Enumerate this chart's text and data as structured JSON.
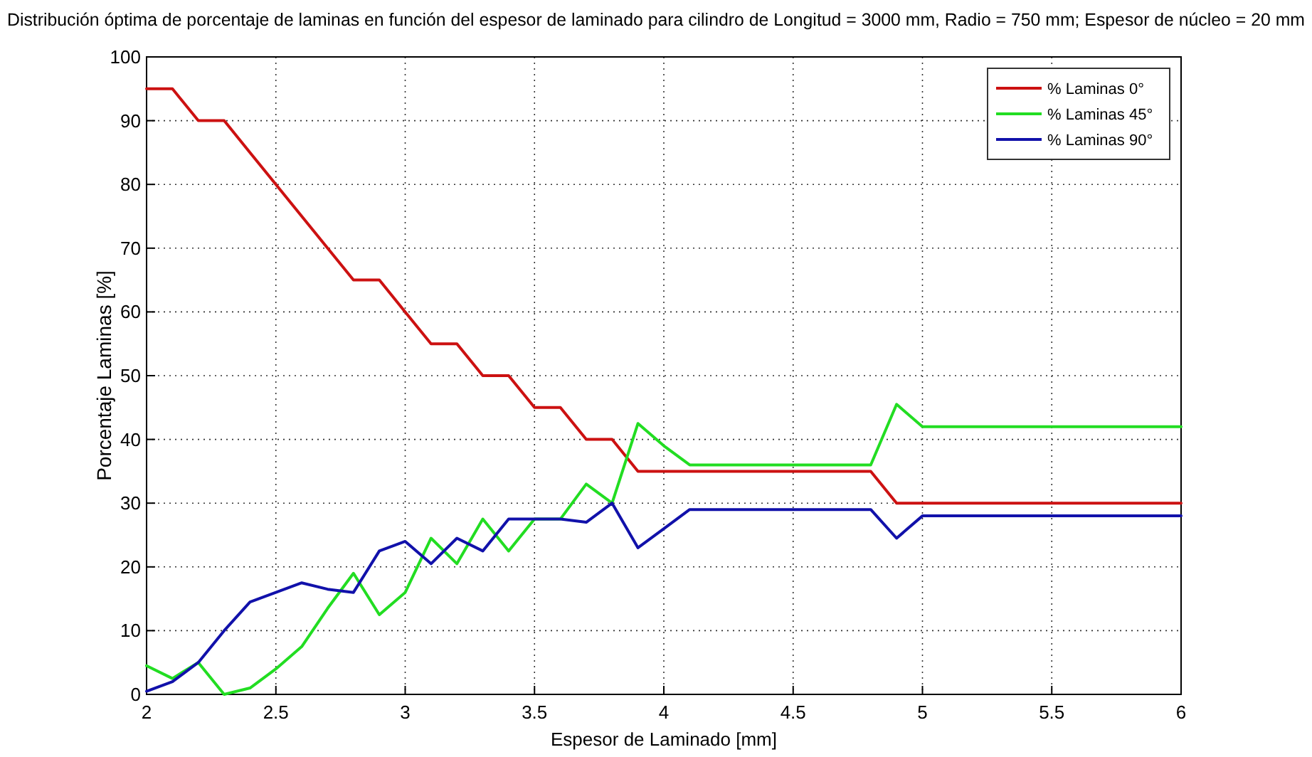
{
  "chart_data": {
    "type": "line",
    "title": "Distribución óptima de porcentaje de laminas en función del espesor de laminado para cilindro de Longitud = 3000 mm, Radio = 750 mm; Espesor de núcleo = 20 mm",
    "xlabel": "Espesor de Laminado [mm]",
    "ylabel": "Porcentaje Laminas [%]",
    "x": [
      2,
      2.1,
      2.2,
      2.3,
      2.4,
      2.5,
      2.6,
      2.7,
      2.8,
      2.9,
      3,
      3.1,
      3.2,
      3.3,
      3.4,
      3.5,
      3.6,
      3.7,
      3.8,
      3.9,
      4,
      4.1,
      4.2,
      4.3,
      4.4,
      4.5,
      4.6,
      4.7,
      4.8,
      4.9,
      5,
      5.1,
      5.2,
      5.3,
      5.4,
      5.5,
      5.6,
      5.7,
      5.8,
      5.9,
      6
    ],
    "series": [
      {
        "name": "% Laminas 0°",
        "color": "#cc1111",
        "values": [
          95,
          95,
          90,
          90,
          85,
          80,
          75,
          70,
          65,
          65,
          60,
          55,
          55,
          50,
          50,
          45,
          45,
          40,
          40,
          35,
          35,
          35,
          35,
          35,
          35,
          35,
          35,
          35,
          35,
          30,
          30,
          30,
          30,
          30,
          30,
          30,
          30,
          30,
          30,
          30,
          30
        ]
      },
      {
        "name": "% Laminas 45°",
        "color": "#22dd22",
        "values": [
          4.5,
          2.5,
          5,
          0,
          1,
          4,
          7.5,
          13.5,
          19,
          12.5,
          16,
          24.5,
          20.5,
          27.5,
          22.5,
          27.5,
          27.5,
          33,
          30,
          42.5,
          39,
          36,
          36,
          36,
          36,
          36,
          36,
          36,
          36,
          45.5,
          42,
          42,
          42,
          42,
          42,
          42,
          42,
          42,
          42,
          42,
          42
        ]
      },
      {
        "name": "% Laminas 90°",
        "color": "#1111aa",
        "values": [
          0.5,
          2,
          5,
          10,
          14.5,
          16,
          17.5,
          16.5,
          16,
          22.5,
          24,
          20.5,
          24.5,
          22.5,
          27.5,
          27.5,
          27.5,
          27,
          30,
          23,
          26,
          29,
          29,
          29,
          29,
          29,
          29,
          29,
          29,
          24.5,
          28,
          28,
          28,
          28,
          28,
          28,
          28,
          28,
          28,
          28,
          28
        ]
      }
    ],
    "xlim": [
      2,
      6
    ],
    "ylim": [
      0,
      100
    ],
    "xticks": [
      2,
      2.5,
      3,
      3.5,
      4,
      4.5,
      5,
      5.5,
      6
    ],
    "yticks": [
      0,
      10,
      20,
      30,
      40,
      50,
      60,
      70,
      80,
      90,
      100
    ],
    "grid": true,
    "legend": "top right",
    "marker": "none",
    "line_style": "solid"
  }
}
